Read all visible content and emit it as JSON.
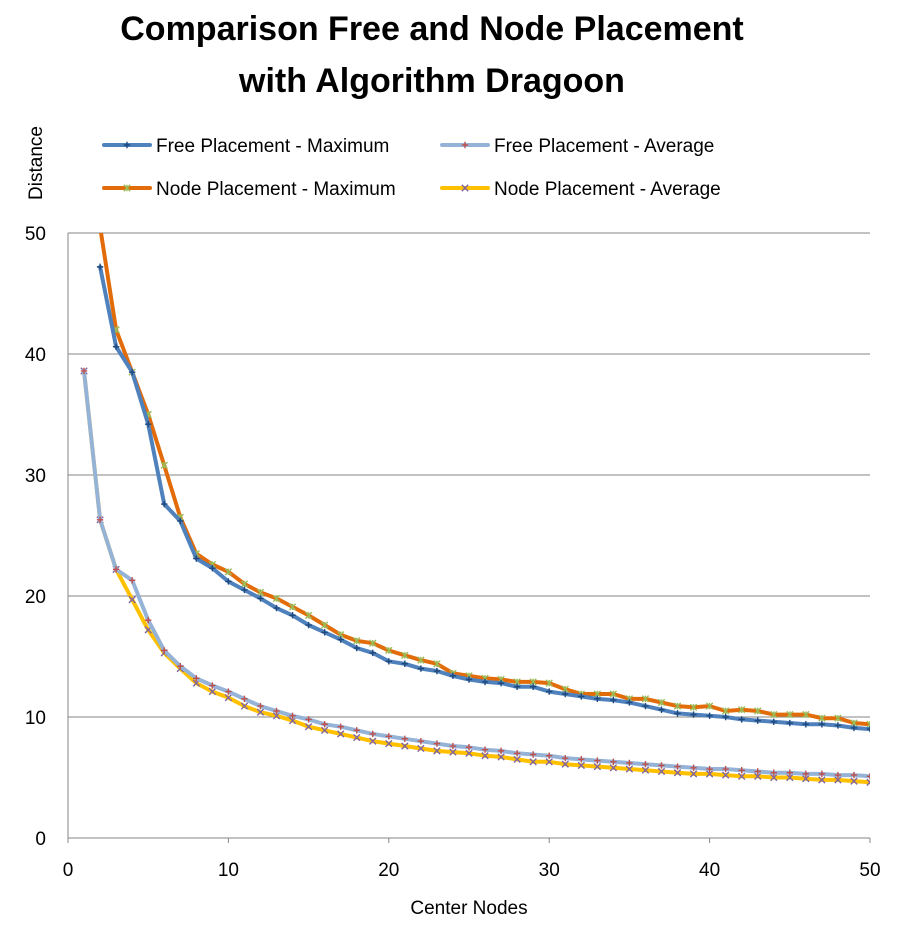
{
  "chart_data": {
    "type": "line",
    "title_line1": "Comparison Free and Node Placement",
    "title_line2": "with Algorithm Dragoon",
    "xlabel": "Center Nodes",
    "ylabel": "Distance",
    "xlim": [
      0,
      50
    ],
    "ylim": [
      0,
      50
    ],
    "x_ticks": [
      0,
      10,
      20,
      30,
      40,
      50
    ],
    "y_ticks": [
      0,
      10,
      20,
      30,
      40,
      50
    ],
    "grid": "horizontal",
    "legend_position": "top",
    "x": [
      1,
      2,
      3,
      4,
      5,
      6,
      7,
      8,
      9,
      10,
      11,
      12,
      13,
      14,
      15,
      16,
      17,
      18,
      19,
      20,
      21,
      22,
      23,
      24,
      25,
      26,
      27,
      28,
      29,
      30,
      31,
      32,
      33,
      34,
      35,
      36,
      37,
      38,
      39,
      40,
      41,
      42,
      43,
      44,
      45,
      46,
      47,
      48,
      49,
      50
    ],
    "series": [
      {
        "name": "Free Placement - Maximum",
        "color": "#4f81bd",
        "marker": "plus",
        "values": [
          null,
          47.2,
          40.6,
          38.5,
          34.2,
          27.6,
          26.2,
          23.1,
          22.3,
          21.2,
          20.5,
          19.8,
          19.0,
          18.4,
          17.6,
          17.0,
          16.4,
          15.7,
          15.3,
          14.6,
          14.4,
          14.0,
          13.8,
          13.4,
          13.1,
          12.9,
          12.8,
          12.5,
          12.5,
          12.1,
          11.9,
          11.7,
          11.5,
          11.4,
          11.2,
          10.9,
          10.6,
          10.3,
          10.2,
          10.1,
          10.0,
          9.8,
          9.7,
          9.6,
          9.5,
          9.4,
          9.4,
          9.3,
          9.1,
          9.0
        ]
      },
      {
        "name": "Free Placement - Average",
        "color": "#95b3d7",
        "marker": "plus",
        "values": [
          38.6,
          26.3,
          22.2,
          21.3,
          18.0,
          15.5,
          14.2,
          13.2,
          12.6,
          12.1,
          11.5,
          10.9,
          10.5,
          10.1,
          9.8,
          9.4,
          9.2,
          8.9,
          8.6,
          8.4,
          8.2,
          8.0,
          7.8,
          7.6,
          7.5,
          7.3,
          7.2,
          7.0,
          6.9,
          6.8,
          6.6,
          6.5,
          6.4,
          6.3,
          6.2,
          6.1,
          6.0,
          5.9,
          5.8,
          5.7,
          5.7,
          5.6,
          5.5,
          5.4,
          5.4,
          5.3,
          5.3,
          5.2,
          5.2,
          5.1
        ]
      },
      {
        "name": "Node Placement - Maximum",
        "color": "#e36c0a",
        "marker": "star",
        "values": [
          null,
          50.5,
          42.0,
          38.5,
          35.0,
          30.8,
          26.5,
          23.5,
          22.6,
          22.0,
          21.0,
          20.3,
          19.8,
          19.1,
          18.4,
          17.6,
          16.8,
          16.3,
          16.1,
          15.5,
          15.1,
          14.7,
          14.4,
          13.6,
          13.4,
          13.2,
          13.1,
          12.9,
          12.9,
          12.8,
          12.3,
          11.9,
          11.9,
          11.9,
          11.5,
          11.5,
          11.2,
          10.9,
          10.8,
          10.9,
          10.5,
          10.6,
          10.5,
          10.2,
          10.2,
          10.2,
          9.9,
          9.9,
          9.5,
          9.4
        ]
      },
      {
        "name": "Node Placement - Average",
        "color": "#ffc000",
        "marker": "x",
        "values": [
          38.6,
          26.3,
          22.2,
          19.7,
          17.2,
          15.3,
          14.0,
          12.8,
          12.1,
          11.6,
          10.9,
          10.4,
          10.1,
          9.7,
          9.2,
          8.9,
          8.6,
          8.3,
          8.0,
          7.8,
          7.6,
          7.4,
          7.2,
          7.1,
          7.0,
          6.8,
          6.7,
          6.5,
          6.3,
          6.3,
          6.1,
          6.0,
          5.9,
          5.8,
          5.7,
          5.6,
          5.5,
          5.4,
          5.3,
          5.3,
          5.2,
          5.1,
          5.1,
          5.0,
          5.0,
          4.9,
          4.8,
          4.8,
          4.7,
          4.6
        ]
      }
    ]
  }
}
